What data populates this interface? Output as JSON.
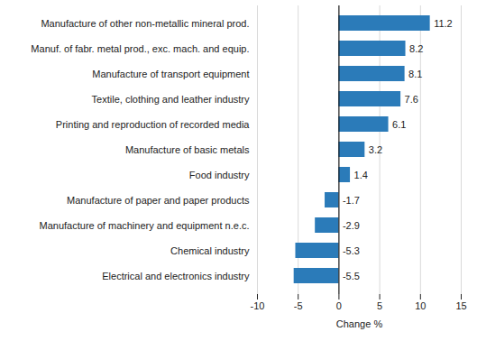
{
  "chart_data": {
    "type": "bar",
    "orientation": "horizontal",
    "categories": [
      "Manufacture of other non-metallic mineral prod.",
      "Manuf. of fabr. metal prod., exc. mach. and equip.",
      "Manufacture of transport equipment",
      "Textile, clothing and leather industry",
      "Printing and reproduction of recorded media",
      "Manufacture of basic metals",
      "Food industry",
      "Manufacture of paper and paper products",
      "Manufacture of machinery and equipment n.e.c.",
      "Chemical industry",
      "Electrical and electronics industry"
    ],
    "values": [
      11.2,
      8.2,
      8.1,
      7.6,
      6.1,
      3.2,
      1.4,
      -1.7,
      -2.9,
      -5.3,
      -5.5
    ],
    "color": "#2b7bb9",
    "x_label": "Change %",
    "xlim": [
      -10,
      15
    ],
    "xticks": [
      -10,
      -5,
      0,
      5,
      10,
      15
    ],
    "grid": true,
    "data_labels": true
  }
}
